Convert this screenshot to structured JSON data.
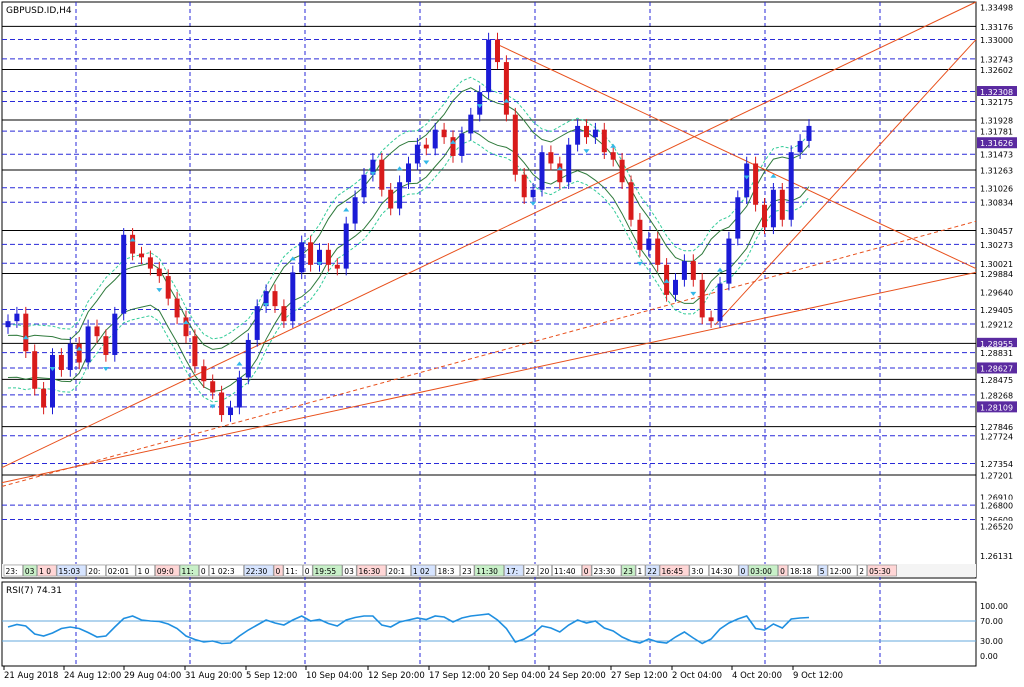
{
  "chart_data": [
    {
      "type": "candlestick",
      "symbol_label": "GBPUSD.ID,H4",
      "price_range": [
        1.2583,
        1.335
      ],
      "price_ticks": [
        "1.33498",
        "1.33176",
        "1.33000",
        "1.32743",
        "1.32602",
        "1.32308",
        "1.32175",
        "1.31928",
        "1.31781",
        "1.31626",
        "1.31473",
        "1.31263",
        "1.31026",
        "1.30834",
        "1.30457",
        "1.30273",
        "1.30021",
        "1.29884",
        "1.29640",
        "1.29405",
        "1.29212",
        "1.28955",
        "1.28831",
        "1.28627",
        "1.28475",
        "1.28268",
        "1.28109",
        "1.27846",
        "1.27724",
        "1.27354",
        "1.27201",
        "1.26910",
        "1.26800",
        "1.26609",
        "1.26520",
        "1.26131"
      ],
      "highlighted_price_ticks": [
        "1.32308",
        "1.31626",
        "1.28955",
        "1.28627",
        "1.28109"
      ],
      "horizontal_levels": [
        1.33176,
        1.33,
        1.32743,
        1.32602,
        1.32308,
        1.32175,
        1.31928,
        1.31781,
        1.31473,
        1.31263,
        1.31026,
        1.30834,
        1.30457,
        1.30273,
        1.30021,
        1.29884,
        1.29405,
        1.29212,
        1.28955,
        1.28831,
        1.28627,
        1.28475,
        1.28268,
        1.28109,
        1.27846,
        1.27724,
        1.27354,
        1.27201,
        1.268,
        1.26609
      ],
      "close_path": [
        1.2925,
        1.2935,
        1.2885,
        1.2835,
        1.281,
        1.288,
        1.286,
        1.2895,
        1.287,
        1.2918,
        1.2905,
        1.288,
        1.2935,
        1.304,
        1.3015,
        1.301,
        1.2995,
        1.2985,
        1.2955,
        1.293,
        1.2905,
        1.2865,
        1.2845,
        1.283,
        1.28,
        1.281,
        1.285,
        1.29,
        1.2945,
        1.2965,
        1.2945,
        1.2925,
        1.299,
        1.303,
        1.3,
        1.302,
        1.3,
        1.2995,
        1.3055,
        1.309,
        1.312,
        1.314,
        1.31,
        1.3075,
        1.311,
        1.3135,
        1.316,
        1.3155,
        1.318,
        1.317,
        1.3145,
        1.3175,
        1.32,
        1.323,
        1.33,
        1.327,
        1.32,
        1.312,
        1.309,
        1.31,
        1.315,
        1.3135,
        1.311,
        1.316,
        1.3185,
        1.317,
        1.318,
        1.315,
        1.314,
        1.311,
        1.306,
        1.302,
        1.3035,
        1.3,
        1.296,
        1.298,
        1.3005,
        1.298,
        1.293,
        1.2925,
        1.2975,
        1.3035,
        1.309,
        1.3135,
        1.308,
        1.305,
        1.31,
        1.306,
        1.315,
        1.3165,
        1.3185
      ],
      "x_tick_labels": [
        "21 Aug 2018",
        "24 Aug 12:00",
        "29 Aug 04:00",
        "31 Aug 20:00",
        "5 Sep 12:00",
        "10 Sep 04:00",
        "12 Sep 20:00",
        "17 Sep 12:00",
        "20 Sep 04:00",
        "24 Sep 20:00",
        "27 Sep 12:00",
        "2 Oct 04:00",
        "4 Oct 20:00",
        "9 Oct 12:00"
      ],
      "session_markers": [
        "23:",
        "03",
        "1 0",
        "15:03",
        "20:",
        "02:01",
        "1 0",
        "09:0",
        "11:",
        "0",
        "1 02:3",
        "22:30",
        "0",
        "11:",
        "0",
        "19:55",
        "03",
        "16:30",
        "20:1",
        "1 02",
        "18:3",
        "23",
        "11:30",
        "17:",
        "22",
        "20",
        "11:40",
        "0",
        "23:30",
        "23",
        "1",
        "22",
        "16:45",
        "3:0",
        "14:30",
        "0",
        "03:00",
        "0",
        "18:18",
        "5",
        "12:00",
        "2",
        "05:30"
      ]
    },
    {
      "type": "line",
      "indicator_label": "RSI(7) 74.31",
      "ylim": [
        0,
        100
      ],
      "y_ticks": [
        "100.00",
        "70.00",
        "30.00",
        "0.00"
      ],
      "levels": [
        70,
        30
      ],
      "values": [
        58,
        63,
        60,
        44,
        40,
        46,
        55,
        58,
        55,
        47,
        38,
        40,
        58,
        75,
        80,
        72,
        70,
        69,
        64,
        55,
        40,
        33,
        28,
        30,
        25,
        26,
        40,
        52,
        62,
        72,
        66,
        62,
        72,
        80,
        70,
        73,
        65,
        60,
        72,
        77,
        80,
        80,
        62,
        58,
        68,
        72,
        76,
        73,
        80,
        78,
        68,
        76,
        80,
        82,
        84,
        72,
        55,
        28,
        34,
        44,
        60,
        56,
        48,
        62,
        72,
        66,
        70,
        56,
        50,
        38,
        30,
        26,
        34,
        28,
        26,
        38,
        48,
        36,
        25,
        34,
        54,
        66,
        74,
        80,
        55,
        52,
        64,
        56,
        74,
        76,
        77
      ]
    }
  ]
}
